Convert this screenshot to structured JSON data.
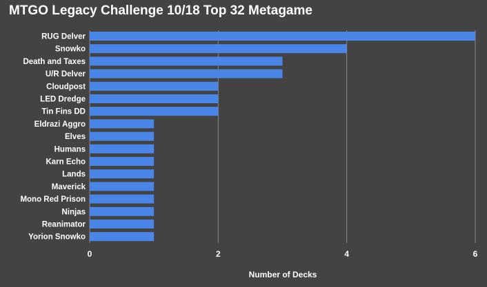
{
  "chart_data": {
    "type": "bar",
    "orientation": "horizontal",
    "title": "MTGO Legacy Challenge 10/18 Top 32 Metagame",
    "xlabel": "Number of Decks",
    "ylabel": "",
    "xlim": [
      0,
      6
    ],
    "xticks": [
      "0",
      "2",
      "4",
      "6"
    ],
    "grid": true,
    "legend": "none",
    "colors": {
      "background": "#434343",
      "bar": "#4a86e8",
      "grid": "#8a8a8a",
      "text": "#ffffff"
    },
    "categories": [
      "RUG Delver",
      "Snowko",
      "Death and Taxes",
      "U/R Delver",
      "Cloudpost",
      "LED Dredge",
      "Tin Fins DD",
      "Eldrazi Aggro",
      "Elves",
      "Humans",
      "Karn Echo",
      "Lands",
      "Maverick",
      "Mono Red Prison",
      "Ninjas",
      "Reanimator",
      "Yorion Snowko"
    ],
    "series": [
      {
        "values": [
          6,
          4,
          3,
          3,
          2,
          2,
          2,
          1,
          1,
          1,
          1,
          1,
          1,
          1,
          1,
          1,
          1
        ]
      }
    ]
  }
}
